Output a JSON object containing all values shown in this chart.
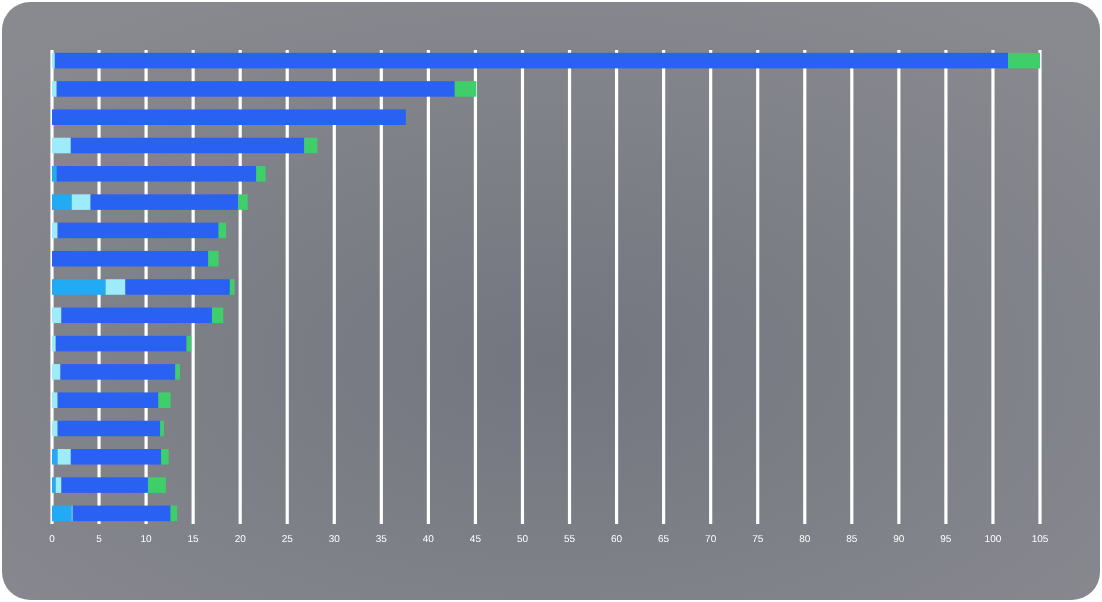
{
  "chart_data": {
    "type": "bar",
    "orientation": "horizontal",
    "stacked": true,
    "grid": "x",
    "categories": [
      null,
      null,
      null,
      null,
      null,
      null,
      null,
      null,
      null,
      null,
      null,
      null,
      null,
      null,
      null,
      null,
      null
    ],
    "series": [
      {
        "color": "#22aaf5",
        "values": [
          0,
          0,
          0,
          null,
          0.5,
          2.1,
          0,
          0,
          5.7,
          0,
          0,
          0,
          0,
          0,
          0.6,
          0.4,
          2.1
        ]
      },
      {
        "color": "#9eecfb",
        "values": [
          0.3,
          0.5,
          0,
          2.0,
          0,
          2.0,
          0.6,
          0,
          2.1,
          1.0,
          0.4,
          0.9,
          0.6,
          0.6,
          1.4,
          0.6,
          0.1
        ]
      },
      {
        "color": "#2962f2",
        "values": [
          101.3,
          42.3,
          37.6,
          24.8,
          21.2,
          15.7,
          17.1,
          16.6,
          11.1,
          16.0,
          13.9,
          12.2,
          10.7,
          10.9,
          9.6,
          9.2,
          10.4
        ]
      },
      {
        "color": "#3ecf6b",
        "values": [
          3.4,
          2.3,
          0,
          1.4,
          1.0,
          1.0,
          0.8,
          1.1,
          0.5,
          1.2,
          0.5,
          0.5,
          1.3,
          0.4,
          0.8,
          1.9,
          0.7
        ]
      }
    ],
    "xlim": [
      0,
      105
    ],
    "xticks": [
      0,
      5,
      10,
      15,
      20,
      25,
      30,
      35,
      40,
      45,
      50,
      55,
      60,
      65,
      70,
      75,
      80,
      85,
      90,
      95,
      100,
      105
    ]
  }
}
